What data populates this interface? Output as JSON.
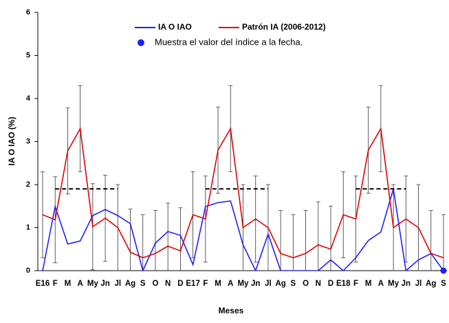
{
  "chart_data": {
    "type": "line",
    "x_label": "Meses",
    "y_label": "IA O IAO (%)",
    "categories": [
      "E16",
      "F",
      "M",
      "A",
      "My",
      "Jn",
      "Jl",
      "Ag",
      "S",
      "O",
      "N",
      "D",
      "E17",
      "F",
      "M",
      "A",
      "My",
      "Jn",
      "Jl",
      "Ag",
      "S",
      "O",
      "N",
      "D",
      "E18",
      "F",
      "M",
      "A",
      "My",
      "Jn",
      "Jl",
      "Ag",
      "S"
    ],
    "ylim": [
      0,
      6
    ],
    "yticks": [
      0,
      1,
      2,
      3,
      4,
      5,
      6
    ],
    "series": [
      {
        "name": "IA O IAO",
        "color": "#1f1fff",
        "values": [
          0,
          1.49,
          0.62,
          0.69,
          1.28,
          1.42,
          1.28,
          1.09,
          0,
          0.64,
          0.91,
          0.82,
          0.14,
          1.49,
          1.58,
          1.62,
          0.6,
          0,
          0.85,
          0,
          0,
          0,
          0,
          0.25,
          0,
          0.3,
          0.7,
          0.9,
          1.9,
          0,
          0.25,
          0.4,
          0
        ]
      },
      {
        "name": "Patrón IA (2006-2012)",
        "color": "#e00000",
        "values": [
          1.3,
          1.18,
          2.78,
          3.3,
          1.02,
          1.22,
          1.0,
          0.43,
          0.3,
          0.4,
          0.57,
          0.46,
          1.3,
          1.2,
          2.8,
          3.3,
          1.0,
          1.2,
          1.0,
          0.4,
          0.3,
          0.4,
          0.6,
          0.5,
          1.3,
          1.2,
          2.8,
          3.3,
          1.0,
          1.2,
          1.0,
          0.4,
          0.3
        ],
        "errors": [
          1,
          1,
          1,
          1,
          1,
          1,
          1,
          1,
          1,
          1,
          1,
          1,
          1,
          1,
          1,
          1,
          1,
          1,
          1,
          1,
          1,
          1,
          1,
          1,
          1,
          1,
          1,
          1,
          1,
          1,
          1,
          1,
          1
        ]
      },
      {
        "color": "#000000",
        "dashed": true,
        "values": [
          null,
          1.9,
          1.9,
          1.9,
          1.9,
          1.9,
          1.9,
          null,
          null,
          null,
          null,
          null,
          null,
          1.9,
          1.9,
          1.9,
          1.9,
          1.9,
          1.9,
          null,
          null,
          null,
          null,
          null,
          null,
          1.9,
          1.9,
          1.9,
          1.9,
          1.9,
          null,
          null,
          null
        ]
      }
    ],
    "marker_note": "Muestra el valor del índice a la fecha."
  }
}
